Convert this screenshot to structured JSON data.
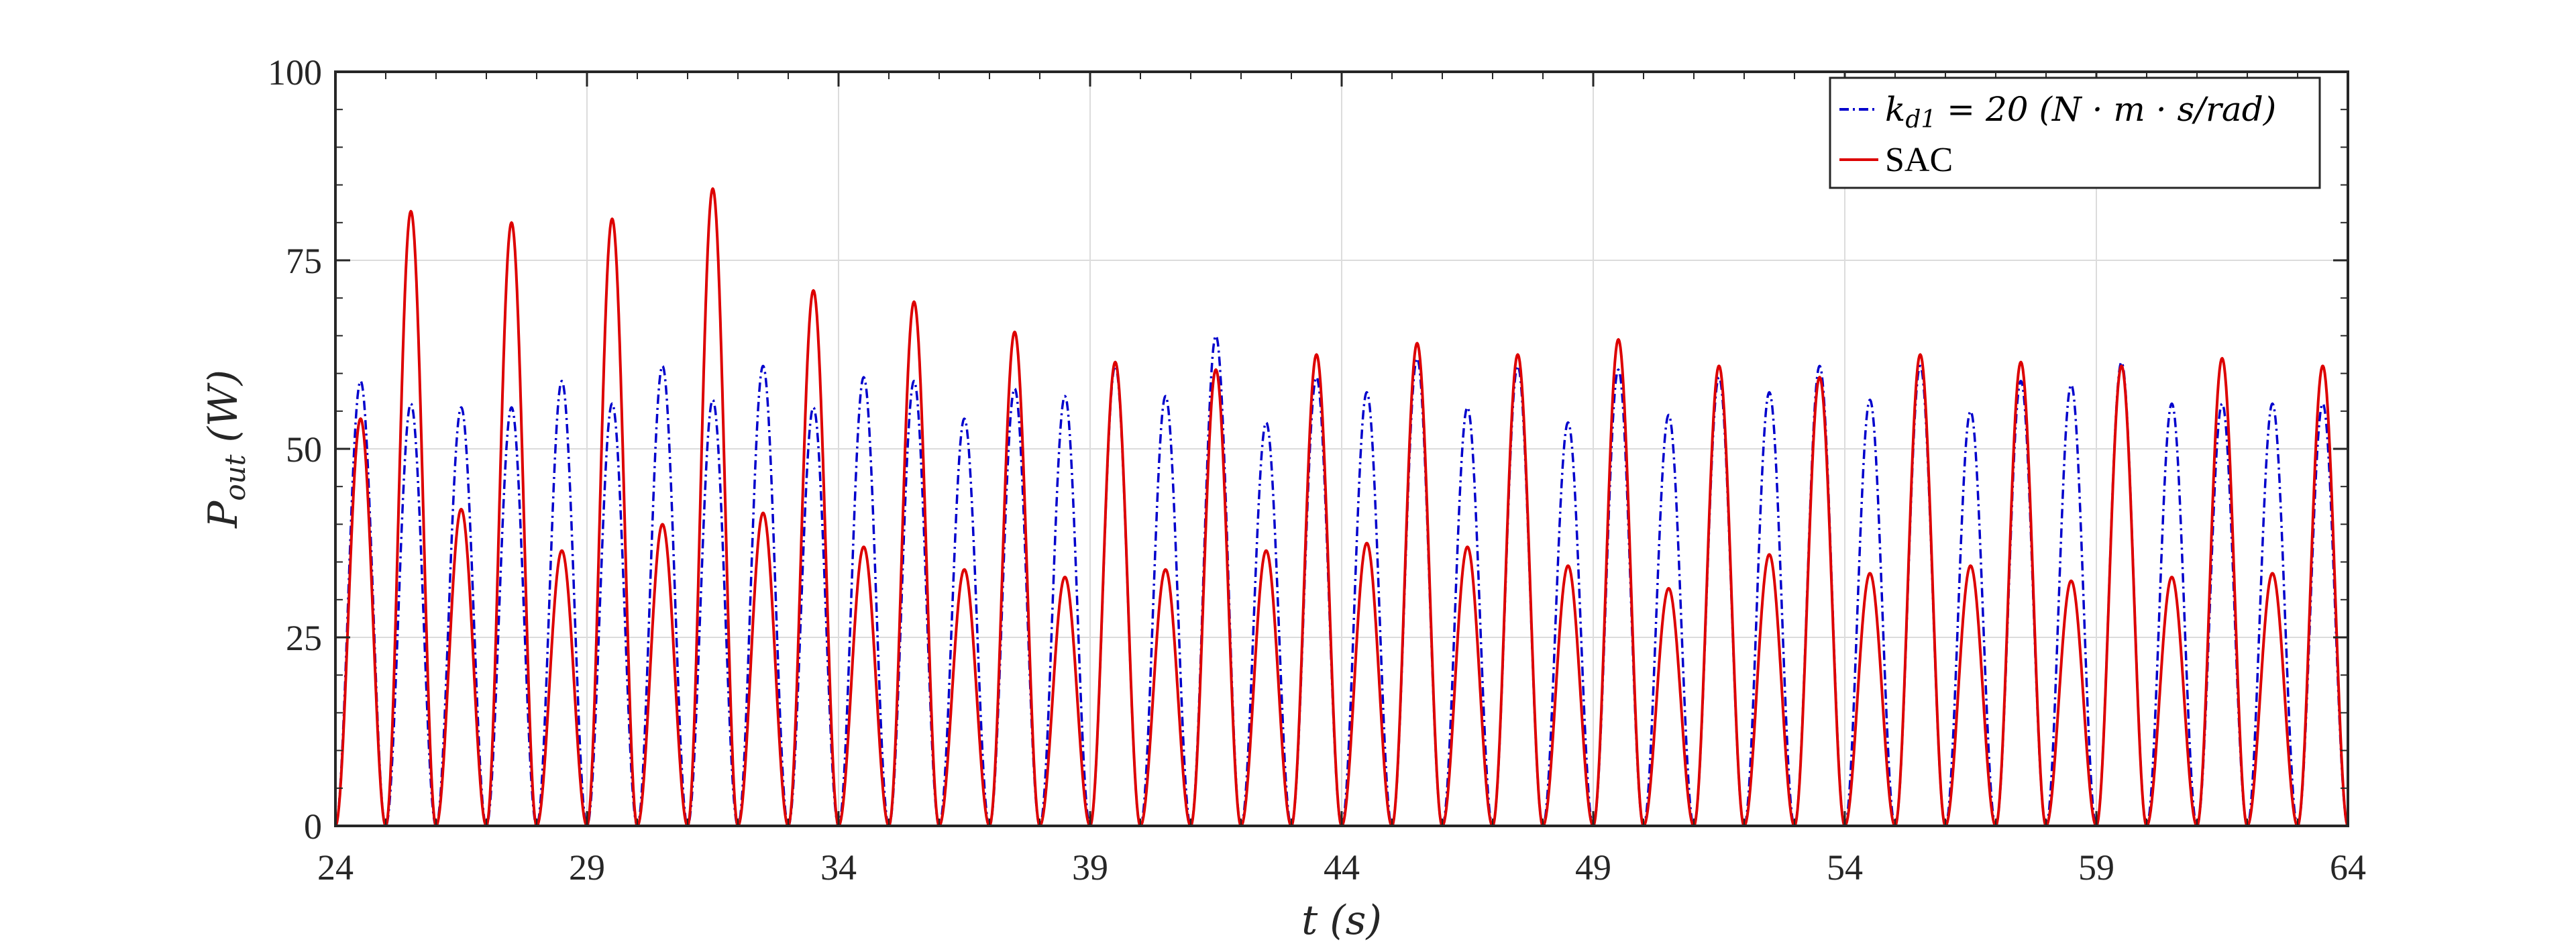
{
  "chart_data": {
    "type": "line",
    "title": "",
    "xlabel": "t (s)",
    "ylabel": "P_out (W)",
    "xlim": [
      24,
      64
    ],
    "ylim": [
      0,
      100
    ],
    "xticks": [
      24,
      29,
      34,
      39,
      44,
      49,
      54,
      59,
      64
    ],
    "yticks": [
      0,
      25,
      50,
      75,
      100
    ],
    "grid": true,
    "legend_position": "top-right",
    "series": [
      {
        "name": "k_d1 = 20 (N·m·s/rad)",
        "style": "dash-dot",
        "color": "#0000CC",
        "period": 1.0,
        "first_peak_x": 24.5,
        "peaks": [
          59,
          56,
          55.5,
          55.5,
          59,
          56,
          61,
          56.5,
          61,
          55.5,
          59.5,
          59,
          54,
          58,
          57,
          61,
          57,
          65,
          53.5,
          59.5,
          57.5,
          62,
          55.5,
          61,
          53.5,
          60.5,
          54.5,
          59.5,
          57.5,
          61,
          56.5,
          61,
          55,
          59,
          58.5,
          61.5,
          56
        ]
      },
      {
        "name": "SAC",
        "style": "solid",
        "color": "#DD0000",
        "period": 1.0,
        "first_peak_x": 24.5,
        "peaks": [
          54,
          81.5,
          42,
          80,
          36.5,
          80.5,
          40,
          84.5,
          41.5,
          71,
          37,
          69.5,
          34,
          65.5,
          33,
          61.5,
          34,
          60.5,
          36.5,
          62.5,
          37.5,
          64,
          37,
          62.5,
          34.5,
          64.5,
          31.5,
          61,
          36,
          59.5,
          33.5,
          62.5,
          34.5,
          61.5,
          32.5,
          61,
          33,
          62,
          33.5,
          61
        ]
      }
    ]
  },
  "legend": {
    "entries": [
      {
        "symbol": "k",
        "subscript": "d1",
        "rest": " = 20 (N · m · s/rad)"
      },
      {
        "label": "SAC"
      }
    ]
  },
  "axes": {
    "xlabel_var": "t",
    "xlabel_unit": "(s)",
    "ylabel_var": "P",
    "ylabel_sub": "out",
    "ylabel_unit": "(W)"
  }
}
